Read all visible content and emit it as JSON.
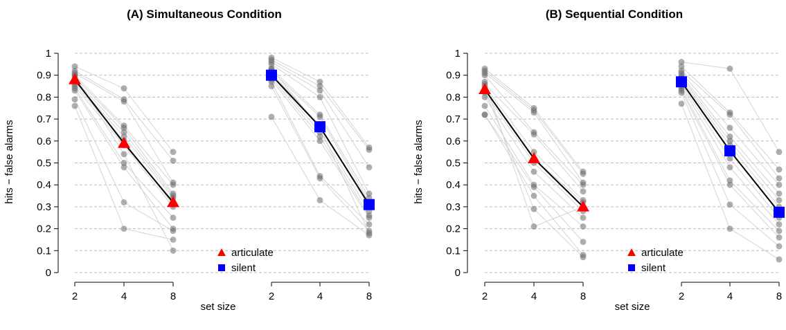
{
  "chart_data": [
    {
      "type": "scatter",
      "title": "(A) Simultaneous Condition",
      "xlabel": "set size",
      "ylabel": "hits − false alarms",
      "ylim": [
        0,
        1
      ],
      "yticks": [
        "0",
        "0.1",
        "0.2",
        "0.3",
        "0.4",
        "0.5",
        "0.6",
        "0.7",
        "0.8",
        "0.9",
        "1"
      ],
      "grid": "horizontal dashed",
      "legend": {
        "placement": "bottom-center",
        "entries": [
          "articulate",
          "silent"
        ]
      },
      "groups": [
        {
          "name": "articulate",
          "marker": "triangle",
          "color": "#ff0000",
          "x": [
            "2",
            "4",
            "8"
          ],
          "mean": [
            0.88,
            0.59,
            0.32
          ],
          "participants": [
            [
              0.94,
              0.84,
              0.55
            ],
            [
              0.92,
              0.79,
              0.51
            ],
            [
              0.91,
              0.78,
              0.41
            ],
            [
              0.9,
              0.67,
              0.4
            ],
            [
              0.89,
              0.66,
              0.36
            ],
            [
              0.88,
              0.64,
              0.35
            ],
            [
              0.87,
              0.62,
              0.34
            ],
            [
              0.86,
              0.6,
              0.31
            ],
            [
              0.85,
              0.58,
              0.3
            ],
            [
              0.84,
              0.5,
              0.25
            ],
            [
              0.83,
              0.48,
              0.2
            ],
            [
              0.79,
              0.32,
              0.19
            ],
            [
              0.76,
              0.2,
              0.15
            ],
            [
              0.9,
              0.54,
              0.1
            ]
          ]
        },
        {
          "name": "silent",
          "marker": "square",
          "color": "#0000ff",
          "x": [
            "2",
            "4",
            "8"
          ],
          "mean": [
            0.9,
            0.665,
            0.31
          ],
          "participants": [
            [
              0.98,
              0.87,
              0.57
            ],
            [
              0.97,
              0.85,
              0.56
            ],
            [
              0.96,
              0.83,
              0.48
            ],
            [
              0.95,
              0.8,
              0.36
            ],
            [
              0.93,
              0.72,
              0.34
            ],
            [
              0.92,
              0.71,
              0.32
            ],
            [
              0.91,
              0.67,
              0.3
            ],
            [
              0.9,
              0.64,
              0.28
            ],
            [
              0.89,
              0.62,
              0.26
            ],
            [
              0.88,
              0.6,
              0.25
            ],
            [
              0.87,
              0.44,
              0.22
            ],
            [
              0.85,
              0.43,
              0.19
            ],
            [
              0.71,
              0.33,
              0.17
            ],
            [
              0.93,
              0.66,
              0.18
            ]
          ]
        }
      ]
    },
    {
      "type": "scatter",
      "title": "(B) Sequential Condition",
      "xlabel": "set size",
      "ylabel": "hits − false alarms",
      "ylim": [
        0,
        1
      ],
      "yticks": [
        "0",
        "0.1",
        "0.2",
        "0.3",
        "0.4",
        "0.5",
        "0.6",
        "0.7",
        "0.8",
        "0.9",
        "1"
      ],
      "grid": "horizontal dashed",
      "legend": {
        "placement": "bottom-center",
        "entries": [
          "articulate",
          "silent"
        ]
      },
      "groups": [
        {
          "name": "articulate",
          "marker": "triangle",
          "color": "#ff0000",
          "x": [
            "2",
            "4",
            "8"
          ],
          "mean": [
            0.835,
            0.52,
            0.3
          ],
          "participants": [
            [
              0.93,
              0.75,
              0.46
            ],
            [
              0.92,
              0.74,
              0.45
            ],
            [
              0.91,
              0.73,
              0.41
            ],
            [
              0.9,
              0.64,
              0.4
            ],
            [
              0.86,
              0.63,
              0.37
            ],
            [
              0.85,
              0.55,
              0.33
            ],
            [
              0.84,
              0.52,
              0.32
            ],
            [
              0.82,
              0.5,
              0.28
            ],
            [
              0.8,
              0.46,
              0.25
            ],
            [
              0.76,
              0.4,
              0.21
            ],
            [
              0.72,
              0.39,
              0.14
            ],
            [
              0.72,
              0.35,
              0.08
            ],
            [
              0.83,
              0.29,
              0.07
            ],
            [
              0.87,
              0.21,
              0.3
            ]
          ]
        },
        {
          "name": "silent",
          "marker": "square",
          "color": "#0000ff",
          "x": [
            "2",
            "4",
            "8"
          ],
          "mean": [
            0.87,
            0.555,
            0.275
          ],
          "participants": [
            [
              0.96,
              0.93,
              0.55
            ],
            [
              0.94,
              0.73,
              0.47
            ],
            [
              0.92,
              0.72,
              0.43
            ],
            [
              0.91,
              0.66,
              0.4
            ],
            [
              0.9,
              0.62,
              0.36
            ],
            [
              0.89,
              0.6,
              0.33
            ],
            [
              0.88,
              0.58,
              0.3
            ],
            [
              0.87,
              0.56,
              0.27
            ],
            [
              0.86,
              0.52,
              0.25
            ],
            [
              0.85,
              0.48,
              0.22
            ],
            [
              0.84,
              0.42,
              0.19
            ],
            [
              0.83,
              0.4,
              0.16
            ],
            [
              0.82,
              0.31,
              0.12
            ],
            [
              0.77,
              0.2,
              0.06
            ]
          ]
        }
      ]
    }
  ]
}
